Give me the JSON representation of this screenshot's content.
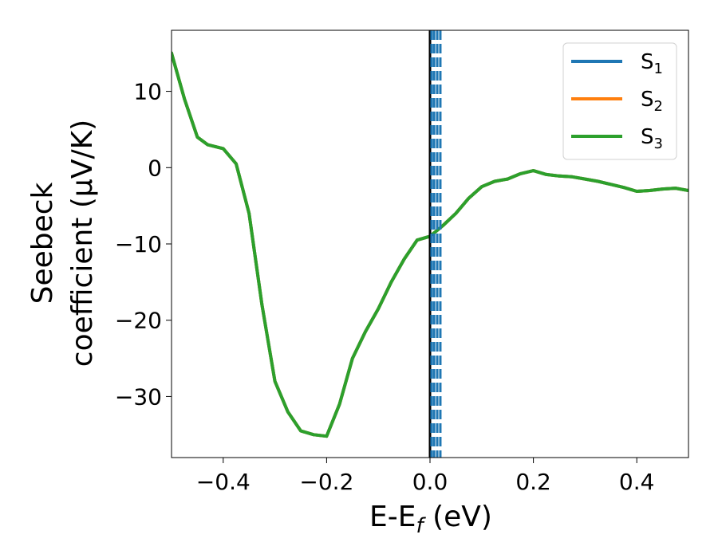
{
  "chart_data": {
    "type": "line",
    "xlabel": "E-E",
    "xlabel_sub": "f",
    "xlabel_unit": " (eV)",
    "ylabel_line1": "Seebeck",
    "ylabel_line2": "coefficient  (μV/K)",
    "xlim": [
      -0.5,
      0.5
    ],
    "ylim": [
      -38,
      18
    ],
    "xticks": [
      -0.4,
      -0.2,
      0.0,
      0.2,
      0.4
    ],
    "xtick_labels": [
      "−0.4",
      "−0.2",
      "0.0",
      "0.2",
      "0.4"
    ],
    "yticks": [
      10,
      0,
      -10,
      -20,
      -30
    ],
    "ytick_labels": [
      "10",
      "0",
      "−10",
      "−20",
      "−30"
    ],
    "grid": false,
    "legend_position": "top-right",
    "series": [
      {
        "name": "S",
        "sub": "1",
        "color": "#1f77b4",
        "x": [
          -0.5,
          -0.475,
          -0.45,
          -0.43,
          -0.4,
          -0.375,
          -0.35,
          -0.325,
          -0.3,
          -0.275,
          -0.25,
          -0.225,
          -0.2,
          -0.175,
          -0.15,
          -0.125,
          -0.1,
          -0.075,
          -0.05,
          -0.025,
          0.0,
          0.025,
          0.05,
          0.075,
          0.1,
          0.125,
          0.15,
          0.175,
          0.2,
          0.225,
          0.25,
          0.275,
          0.3,
          0.325,
          0.35,
          0.375,
          0.4,
          0.425,
          0.45,
          0.475,
          0.5
        ],
        "y": [
          15,
          9,
          4,
          3,
          2.5,
          0.5,
          -6,
          -18,
          -28,
          -32,
          -34.5,
          -35,
          -35.2,
          -31,
          -25,
          -21.5,
          -18.5,
          -15,
          -12,
          -9.5,
          -9,
          -7.6,
          -6,
          -4,
          -2.5,
          -1.8,
          -1.5,
          -0.8,
          -0.4,
          -0.9,
          -1.1,
          -1.2,
          -1.5,
          -1.8,
          -2.2,
          -2.6,
          -3.1,
          -3.0,
          -2.8,
          -2.7,
          -3.0
        ]
      },
      {
        "name": "S",
        "sub": "2",
        "color": "#ff7f0e",
        "x": [
          -0.5,
          -0.475,
          -0.45,
          -0.43,
          -0.4,
          -0.375,
          -0.35,
          -0.325,
          -0.3,
          -0.275,
          -0.25,
          -0.225,
          -0.2,
          -0.175,
          -0.15,
          -0.125,
          -0.1,
          -0.075,
          -0.05,
          -0.025,
          0.0,
          0.025,
          0.05,
          0.075,
          0.1,
          0.125,
          0.15,
          0.175,
          0.2,
          0.225,
          0.25,
          0.275,
          0.3,
          0.325,
          0.35,
          0.375,
          0.4,
          0.425,
          0.45,
          0.475,
          0.5
        ],
        "y": [
          15,
          9,
          4,
          3,
          2.5,
          0.5,
          -6,
          -18,
          -28,
          -32,
          -34.5,
          -35,
          -35.2,
          -31,
          -25,
          -21.5,
          -18.5,
          -15,
          -12,
          -9.5,
          -9,
          -7.6,
          -6,
          -4,
          -2.5,
          -1.8,
          -1.5,
          -0.8,
          -0.4,
          -0.9,
          -1.1,
          -1.2,
          -1.5,
          -1.8,
          -2.2,
          -2.6,
          -3.1,
          -3.0,
          -2.8,
          -2.7,
          -3.0
        ]
      },
      {
        "name": "S",
        "sub": "3",
        "color": "#2ca02c",
        "x": [
          -0.5,
          -0.475,
          -0.45,
          -0.43,
          -0.4,
          -0.375,
          -0.35,
          -0.325,
          -0.3,
          -0.275,
          -0.25,
          -0.225,
          -0.2,
          -0.175,
          -0.15,
          -0.125,
          -0.1,
          -0.075,
          -0.05,
          -0.025,
          0.0,
          0.025,
          0.05,
          0.075,
          0.1,
          0.125,
          0.15,
          0.175,
          0.2,
          0.225,
          0.25,
          0.275,
          0.3,
          0.325,
          0.35,
          0.375,
          0.4,
          0.425,
          0.45,
          0.475,
          0.5
        ],
        "y": [
          15,
          9,
          4,
          3,
          2.5,
          0.5,
          -6,
          -18,
          -28,
          -32,
          -34.5,
          -35,
          -35.2,
          -31,
          -25,
          -21.5,
          -18.5,
          -15,
          -12,
          -9.5,
          -9,
          -7.6,
          -6,
          -4,
          -2.5,
          -1.8,
          -1.5,
          -0.8,
          -0.4,
          -0.9,
          -1.1,
          -1.2,
          -1.5,
          -1.8,
          -2.2,
          -2.6,
          -3.1,
          -3.0,
          -2.8,
          -2.7,
          -3.0
        ]
      }
    ],
    "vlines": [
      {
        "x": 0.0,
        "color": "#000000",
        "style": "solid"
      },
      {
        "x": 0.003,
        "color": "#1f77b4",
        "style": "dashed"
      },
      {
        "x": 0.008,
        "color": "#1f77b4",
        "style": "dashed"
      },
      {
        "x": 0.014,
        "color": "#1f77b4",
        "style": "dashed"
      },
      {
        "x": 0.02,
        "color": "#1f77b4",
        "style": "dashed"
      }
    ]
  }
}
